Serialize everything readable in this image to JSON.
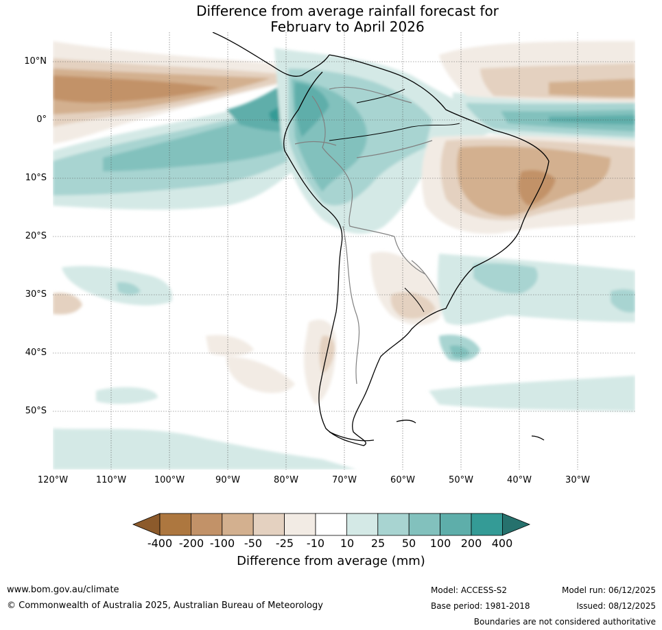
{
  "title": {
    "line1": "Difference from average rainfall forecast for",
    "line2": "February to April 2026"
  },
  "map": {
    "region": "South America",
    "lon_range": [
      -120,
      -20
    ],
    "lat_range": [
      -60,
      15
    ],
    "lat_labels": [
      "10°N",
      "0°",
      "10°S",
      "20°S",
      "30°S",
      "40°S",
      "50°S"
    ],
    "lat_values": [
      10,
      0,
      -10,
      -20,
      -30,
      -40,
      -50
    ],
    "lon_labels": [
      "120°W",
      "110°W",
      "100°W",
      "90°W",
      "80°W",
      "70°W",
      "60°W",
      "50°W",
      "40°W",
      "30°W"
    ],
    "lon_values": [
      -120,
      -110,
      -100,
      -90,
      -80,
      -70,
      -60,
      -50,
      -40,
      -30
    ]
  },
  "colorbar": {
    "label": "Difference from average (mm)",
    "ticks": [
      "-400",
      "-200",
      "-100",
      "-50",
      "-25",
      "-10",
      "10",
      "25",
      "50",
      "100",
      "200",
      "400"
    ],
    "colors": [
      "#8c5a2b",
      "#ad773f",
      "#c29268",
      "#d3b08f",
      "#e4d1c0",
      "#f2ebe4",
      "#ffffff",
      "#d4e9e6",
      "#a8d4d1",
      "#82c1bd",
      "#5eaeaa",
      "#349b96",
      "#26716d"
    ]
  },
  "footer": {
    "url": "www.bom.gov.au/climate",
    "copyright": "© Commonwealth of Australia 2025, Australian Bureau of Meteorology",
    "model": "Model: ACCESS-S2",
    "base_period": "Base period: 1981-2018",
    "model_run": "Model run: 06/12/2025",
    "issued": "Issued: 08/12/2025",
    "boundaries": "Boundaries are not considered authoritative"
  }
}
